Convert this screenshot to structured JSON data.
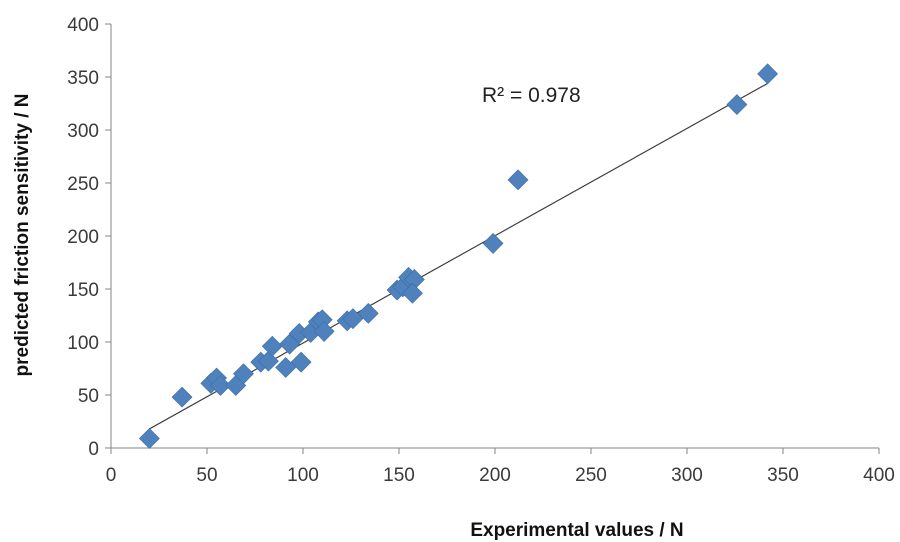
{
  "chart_data": {
    "type": "scatter",
    "title": "",
    "xlabel": "Experimental values / N",
    "ylabel": "predicted friction sensitivity / N",
    "xlim": [
      0,
      400
    ],
    "ylim": [
      0,
      400
    ],
    "x_ticks": [
      0,
      50,
      100,
      150,
      200,
      250,
      300,
      350,
      400
    ],
    "y_ticks": [
      0,
      50,
      100,
      150,
      200,
      250,
      300,
      350,
      400
    ],
    "grid": false,
    "legend": "none",
    "marker": "diamond",
    "marker_color": "#4f81bd",
    "trendline": {
      "type": "linear",
      "x_range": [
        20,
        342
      ],
      "y_range": [
        18,
        344
      ],
      "color": "#404040"
    },
    "annotation": "R² = 0.978",
    "series": [
      {
        "points": [
          [
            20,
            9
          ],
          [
            37,
            48
          ],
          [
            52,
            61
          ],
          [
            55,
            66
          ],
          [
            57,
            59
          ],
          [
            65,
            59
          ],
          [
            69,
            70
          ],
          [
            78,
            81
          ],
          [
            82,
            82
          ],
          [
            84,
            96
          ],
          [
            91,
            76
          ],
          [
            93,
            98
          ],
          [
            98,
            108
          ],
          [
            99,
            81
          ],
          [
            104,
            109
          ],
          [
            108,
            119
          ],
          [
            110,
            121
          ],
          [
            111,
            110
          ],
          [
            123,
            120
          ],
          [
            126,
            122
          ],
          [
            134,
            127
          ],
          [
            149,
            149
          ],
          [
            152,
            152
          ],
          [
            155,
            161
          ],
          [
            158,
            159
          ],
          [
            157,
            146
          ],
          [
            199,
            193
          ],
          [
            212,
            253
          ],
          [
            326,
            324
          ],
          [
            342,
            353
          ]
        ]
      }
    ]
  }
}
